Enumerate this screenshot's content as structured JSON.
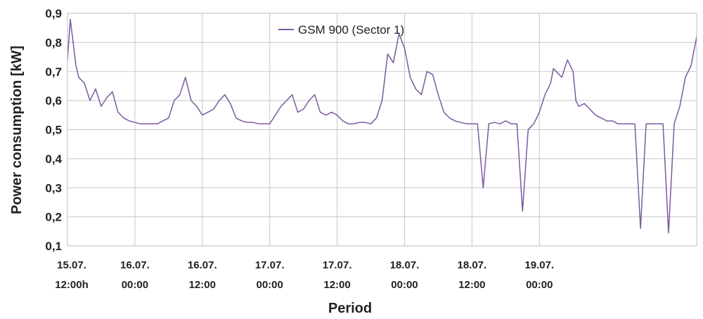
{
  "chart_data": {
    "type": "line",
    "title": "",
    "xlabel": "Period",
    "ylabel": "Power consumption [kW]",
    "ylim": [
      0.1,
      0.9
    ],
    "y_ticks": [
      "0,1",
      "0,2",
      "0,3",
      "0,4",
      "0,5",
      "0,6",
      "0,7",
      "0,8",
      "0,9"
    ],
    "x_range_hours": [
      0,
      112
    ],
    "x_ticks": [
      {
        "hour": 0,
        "line1": "15.07.",
        "line2": "12:00h"
      },
      {
        "hour": 12,
        "line1": "16.07.",
        "line2": "00:00"
      },
      {
        "hour": 24,
        "line1": "16.07.",
        "line2": "12:00"
      },
      {
        "hour": 36,
        "line1": "17.07.",
        "line2": "00:00"
      },
      {
        "hour": 48,
        "line1": "17.07.",
        "line2": "12:00"
      },
      {
        "hour": 60,
        "line1": "18.07.",
        "line2": "00:00"
      },
      {
        "hour": 72,
        "line1": "18.07.",
        "line2": "12:00"
      },
      {
        "hour": 84,
        "line1": "19.07.",
        "line2": "00:00"
      }
    ],
    "grid": true,
    "legend_position": "top-center",
    "series": [
      {
        "name": "GSM 900 (Sector 1)",
        "color": "#7b5a9e",
        "x": [
          0,
          0.5,
          1,
          1.5,
          2,
          3,
          4,
          5,
          6,
          7,
          8,
          9,
          10,
          11,
          12,
          13,
          14,
          15,
          16,
          17,
          18,
          19,
          20,
          21,
          22,
          23,
          24,
          25,
          26,
          27,
          28,
          29,
          30,
          31,
          32,
          33,
          34,
          35,
          36,
          37,
          38,
          39,
          40,
          41,
          42,
          43,
          44,
          45,
          46,
          47,
          48,
          49,
          50,
          51,
          52,
          53,
          54,
          55,
          56,
          57,
          58,
          59,
          60,
          61,
          62,
          63,
          64,
          65,
          66,
          67,
          68,
          69,
          70,
          71,
          72,
          73,
          74,
          75,
          76,
          77,
          78,
          79,
          80,
          81,
          82,
          83,
          84,
          85,
          86,
          86.5,
          87,
          88,
          89,
          90,
          90.5,
          91,
          92,
          93,
          94,
          95,
          96,
          97,
          98,
          99,
          100,
          101,
          102,
          103,
          104,
          105,
          106,
          107,
          108,
          109,
          110,
          111,
          112
        ],
        "y": [
          0.74,
          0.88,
          0.8,
          0.72,
          0.68,
          0.66,
          0.6,
          0.64,
          0.58,
          0.61,
          0.63,
          0.56,
          0.54,
          0.53,
          0.525,
          0.52,
          0.52,
          0.52,
          0.52,
          0.53,
          0.54,
          0.6,
          0.62,
          0.68,
          0.6,
          0.58,
          0.55,
          0.56,
          0.57,
          0.6,
          0.62,
          0.59,
          0.54,
          0.53,
          0.525,
          0.525,
          0.52,
          0.52,
          0.52,
          0.55,
          0.58,
          0.6,
          0.62,
          0.56,
          0.57,
          0.6,
          0.62,
          0.56,
          0.55,
          0.56,
          0.55,
          0.53,
          0.52,
          0.52,
          0.525,
          0.525,
          0.52,
          0.54,
          0.6,
          0.76,
          0.73,
          0.83,
          0.78,
          0.68,
          0.64,
          0.62,
          0.7,
          0.69,
          0.62,
          0.56,
          0.54,
          0.53,
          0.525,
          0.52,
          0.52,
          0.52,
          0.3,
          0.52,
          0.525,
          0.52,
          0.53,
          0.52,
          0.52,
          0.22,
          0.5,
          0.52,
          0.56,
          0.62,
          0.66,
          0.71,
          0.7,
          0.68,
          0.74,
          0.7,
          0.6,
          0.58,
          0.59,
          0.57,
          0.55,
          0.54,
          0.53,
          0.53,
          0.52,
          0.52,
          0.52,
          0.52,
          0.16,
          0.52,
          0.52,
          0.52,
          0.52,
          0.145,
          0.52,
          0.58,
          0.68,
          0.72,
          0.82
        ]
      }
    ]
  }
}
